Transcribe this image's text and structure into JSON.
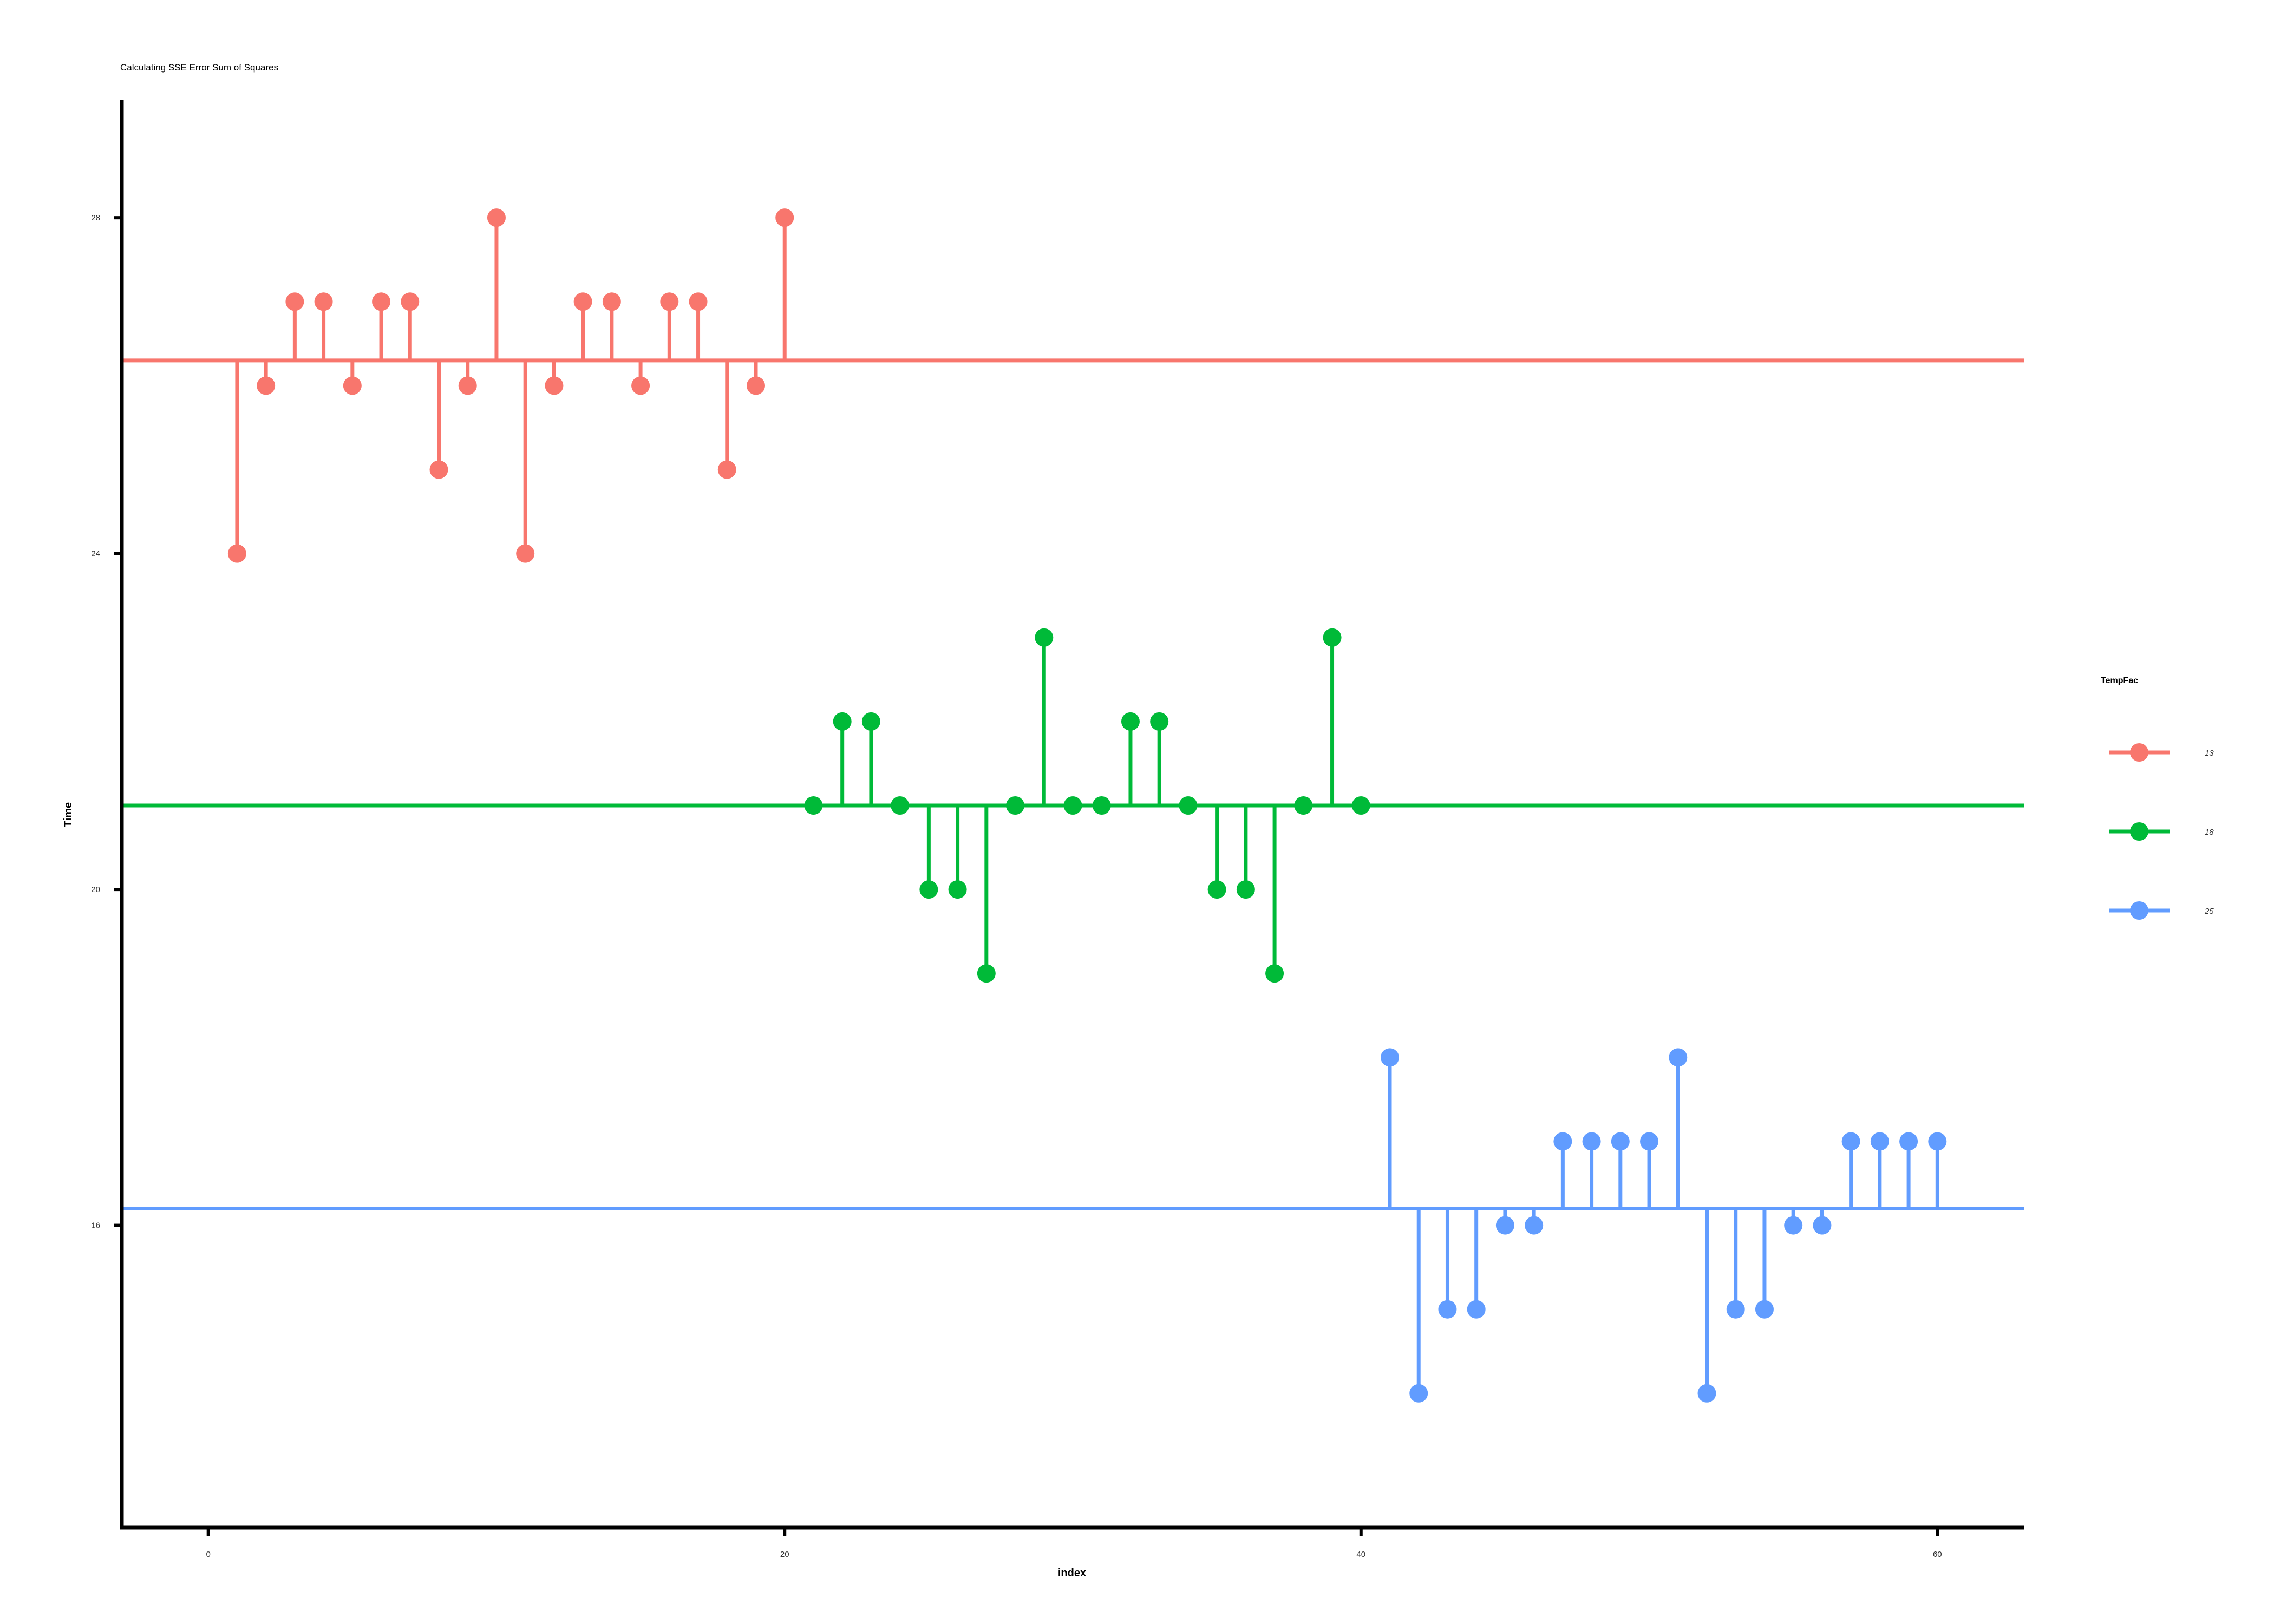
{
  "chart_data": {
    "type": "lollipop",
    "title": "Calculating SSE Error Sum of Squares",
    "xlabel": "index",
    "ylabel": "Time",
    "xlim": [
      -3,
      63
    ],
    "ylim": [
      12.4,
      29.4
    ],
    "x_ticks": [
      0,
      20,
      40,
      60
    ],
    "y_ticks": [
      16,
      20,
      24,
      28
    ],
    "grid": false,
    "legend": {
      "title": "TempFac",
      "position": "right"
    },
    "series": [
      {
        "name": "13",
        "color": "#F8766D",
        "mean": 26.3,
        "x": [
          1,
          2,
          3,
          4,
          5,
          6,
          7,
          8,
          9,
          10,
          11,
          12,
          13,
          14,
          15,
          16,
          17,
          18,
          19,
          20
        ],
        "values": [
          24,
          26,
          27,
          27,
          26,
          27,
          27,
          25,
          26,
          28,
          24,
          26,
          27,
          27,
          26,
          27,
          27,
          25,
          26,
          28
        ]
      },
      {
        "name": "18",
        "color": "#00BA38",
        "mean": 21,
        "x": [
          21,
          22,
          23,
          24,
          25,
          26,
          27,
          28,
          29,
          30,
          31,
          32,
          33,
          34,
          35,
          36,
          37,
          38,
          39,
          40
        ],
        "values": [
          21,
          22,
          22,
          21,
          20,
          20,
          19,
          21,
          23,
          21,
          21,
          22,
          22,
          21,
          20,
          20,
          19,
          21,
          23,
          21
        ]
      },
      {
        "name": "25",
        "color": "#619CFF",
        "mean": 16.2,
        "x": [
          41,
          42,
          43,
          44,
          45,
          46,
          47,
          48,
          49,
          50,
          51,
          52,
          53,
          54,
          55,
          56,
          57,
          58,
          59,
          60
        ],
        "values": [
          18,
          14,
          15,
          15,
          16,
          16,
          17,
          17,
          17,
          17,
          18,
          14,
          15,
          15,
          16,
          16,
          17,
          17,
          17,
          17
        ]
      }
    ]
  }
}
